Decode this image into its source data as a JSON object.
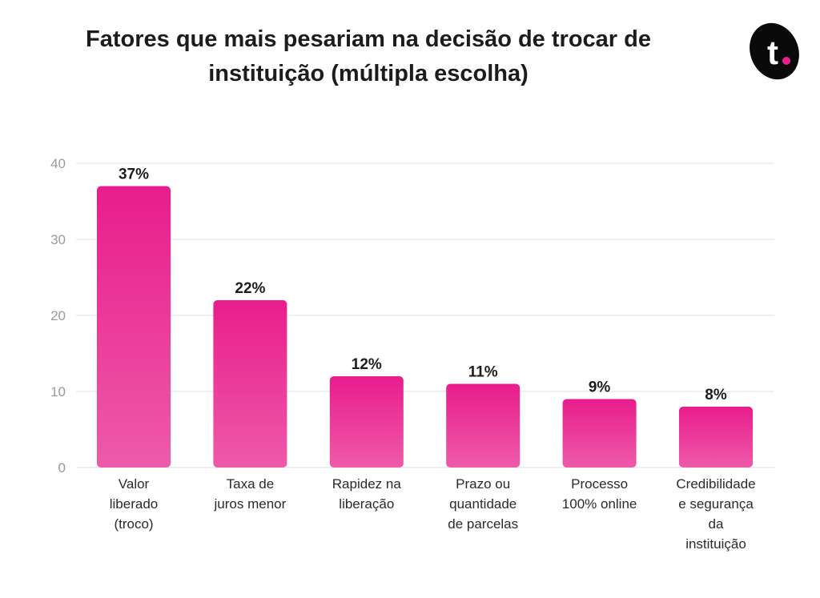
{
  "title": "Fatores que mais pesariam na decisão de trocar de instituição (múltipla escolha)",
  "logo": {
    "icon": "tilt-logo-icon",
    "letter": "t",
    "bg_color": "#0a0a0a",
    "dot_color": "#e8208f"
  },
  "colors": {
    "bar_top": "#e81d8c",
    "bar_bottom": "#ee5aa9",
    "grid": "#ececec"
  },
  "chart_data": {
    "type": "bar",
    "title": "Fatores que mais pesariam na decisão de trocar de instituição (múltipla escolha)",
    "xlabel": "",
    "ylabel": "",
    "ylim": [
      0,
      40
    ],
    "yticks": [
      0,
      10,
      20,
      30,
      40
    ],
    "grid": true,
    "categories": [
      [
        "Valor",
        "liberado",
        "(troco)"
      ],
      [
        "Taxa de",
        "juros menor"
      ],
      [
        "Rapidez na",
        "liberação"
      ],
      [
        "Prazo ou",
        "quantidade",
        "de parcelas"
      ],
      [
        "Processo",
        "100% online"
      ],
      [
        "Credibilidade",
        "e segurança",
        "da",
        "instituição"
      ]
    ],
    "values": [
      37,
      22,
      12,
      11,
      9,
      8
    ],
    "data_labels": [
      "37%",
      "22%",
      "12%",
      "11%",
      "9%",
      "8%"
    ]
  }
}
